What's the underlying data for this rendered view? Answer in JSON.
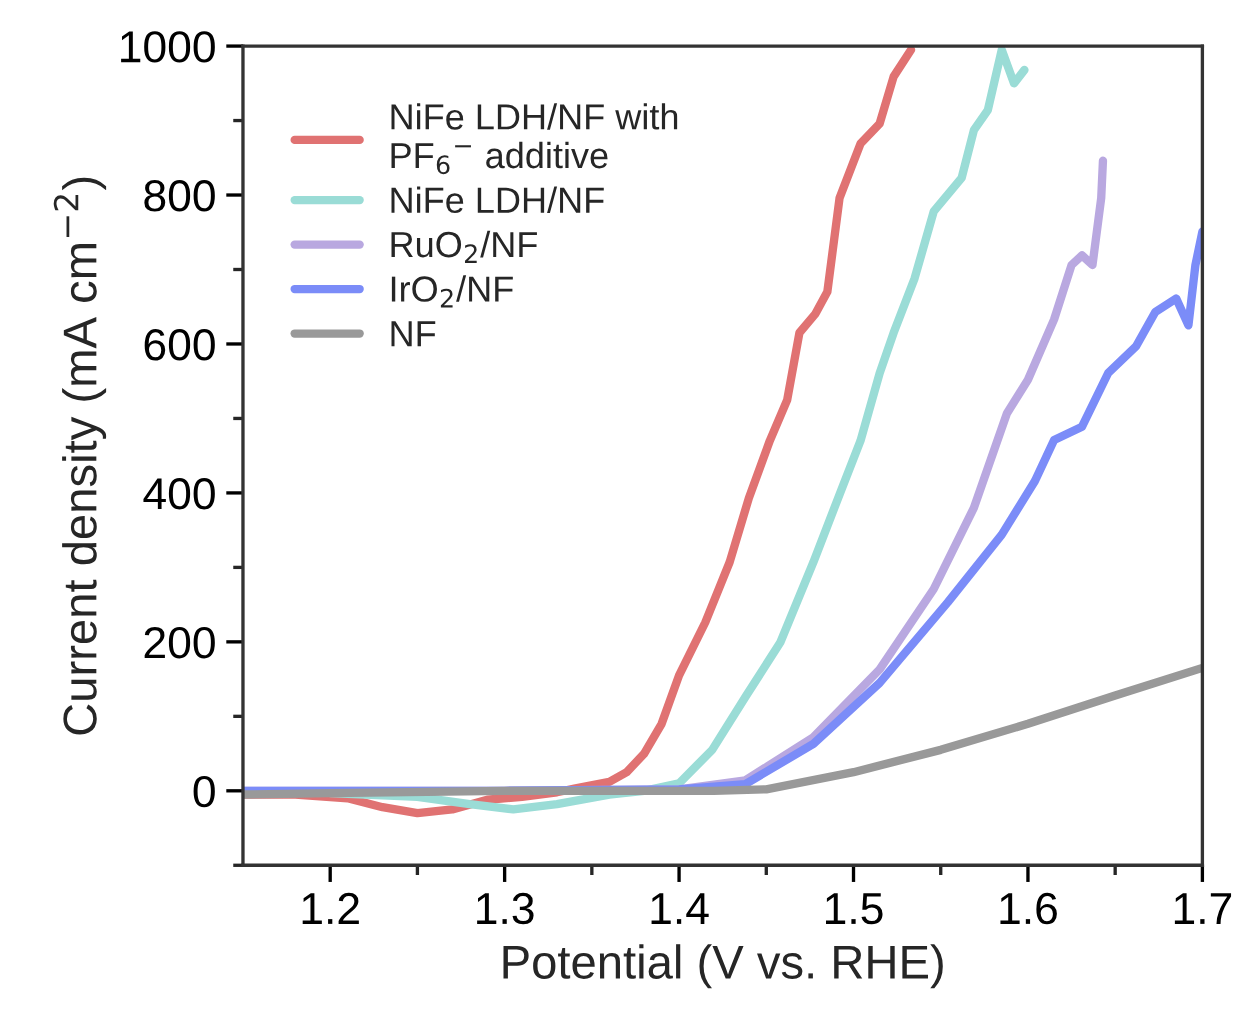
{
  "chart_data": {
    "type": "line",
    "xlabel": "Potential (V vs. RHE)",
    "ylabel": "Current density (mA cm$^{−2}$)",
    "xlim": [
      1.15,
      1.7
    ],
    "ylim": [
      -100,
      1000
    ],
    "xticks": [
      1.2,
      {
        "value": 1.25,
        "label": null
      },
      1.3,
      {
        "value": 1.35,
        "label": null
      },
      1.4,
      {
        "value": 1.45,
        "label": null
      },
      1.5,
      {
        "value": 1.55,
        "label": null
      },
      1.6,
      {
        "value": 1.65,
        "label": null
      },
      1.7
    ],
    "yticks": [
      {
        "value": -100,
        "label": null
      },
      0,
      {
        "value": 100,
        "label": null
      },
      200,
      {
        "value": 300,
        "label": null
      },
      400,
      {
        "value": 500,
        "label": null
      },
      600,
      {
        "value": 700,
        "label": null
      },
      800,
      {
        "value": 900,
        "label": null
      },
      1000
    ],
    "legend": "top left",
    "grid": false,
    "line_style": "solid",
    "marker": "none",
    "series": [
      {
        "name": "NiFe LDH/NF with\nPF$_{6}$$^{−}$ additive",
        "color": "#e07272",
        "x": [
          1.15,
          1.18,
          1.21,
          1.23,
          1.25,
          1.27,
          1.29,
          1.31,
          1.33,
          1.34,
          1.36,
          1.37,
          1.38,
          1.39,
          1.4,
          1.415,
          1.429,
          1.44,
          1.452,
          1.462,
          1.469,
          1.478,
          1.485,
          1.492,
          1.504,
          1.515,
          1.523,
          1.533
        ],
        "values": [
          -5,
          -5,
          -10,
          -22,
          -30,
          -25,
          -12,
          -8,
          -2,
          3,
          12,
          25,
          50,
          90,
          155,
          226,
          307,
          393,
          470,
          525,
          615,
          640,
          670,
          796,
          869,
          896,
          959,
          995
        ]
      },
      {
        "name": "NiFe LDH/NF",
        "color": "#9adcd6",
        "x": [
          1.2,
          1.25,
          1.28,
          1.305,
          1.33,
          1.36,
          1.38,
          1.4,
          1.419,
          1.438,
          1.458,
          1.477,
          1.492,
          1.504,
          1.515,
          1.523,
          1.535,
          1.546,
          1.562,
          1.569,
          1.577,
          1.585,
          1.592,
          1.598
        ],
        "values": [
          -3,
          -8,
          -18,
          -25,
          -18,
          -5,
          0,
          10,
          55,
          126,
          199,
          307,
          398,
          470,
          561,
          615,
          688,
          778,
          823,
          887,
          914,
          995,
          950,
          968
        ]
      },
      {
        "name": "RuO$_{2}$/NF",
        "color": "#b9a8e0",
        "x": [
          1.15,
          1.3,
          1.4,
          1.438,
          1.477,
          1.515,
          1.546,
          1.569,
          1.588,
          1.6,
          1.615,
          1.625,
          1.631,
          1.637,
          1.642,
          1.643
        ],
        "values": [
          0,
          0,
          2,
          14,
          72,
          163,
          271,
          380,
          507,
          552,
          633,
          706,
          719,
          706,
          796,
          846
        ]
      },
      {
        "name": "IrO$_{2}$/NF",
        "color": "#7b8cf8",
        "x": [
          1.15,
          1.3,
          1.4,
          1.438,
          1.477,
          1.515,
          1.554,
          1.585,
          1.604,
          1.615,
          1.631,
          1.646,
          1.662,
          1.673,
          1.685,
          1.692,
          1.696,
          1.7
        ],
        "values": [
          0,
          0,
          2,
          9,
          63,
          145,
          253,
          344,
          416,
          471,
          489,
          561,
          597,
          643,
          661,
          625,
          706,
          751
        ]
      },
      {
        "name": "NF",
        "color": "#999999",
        "x": [
          1.15,
          1.2,
          1.3,
          1.42,
          1.45,
          1.5,
          1.55,
          1.6,
          1.65,
          1.7
        ],
        "values": [
          -5,
          -3,
          0,
          0,
          2,
          25,
          55,
          90,
          128,
          165
        ]
      }
    ]
  }
}
